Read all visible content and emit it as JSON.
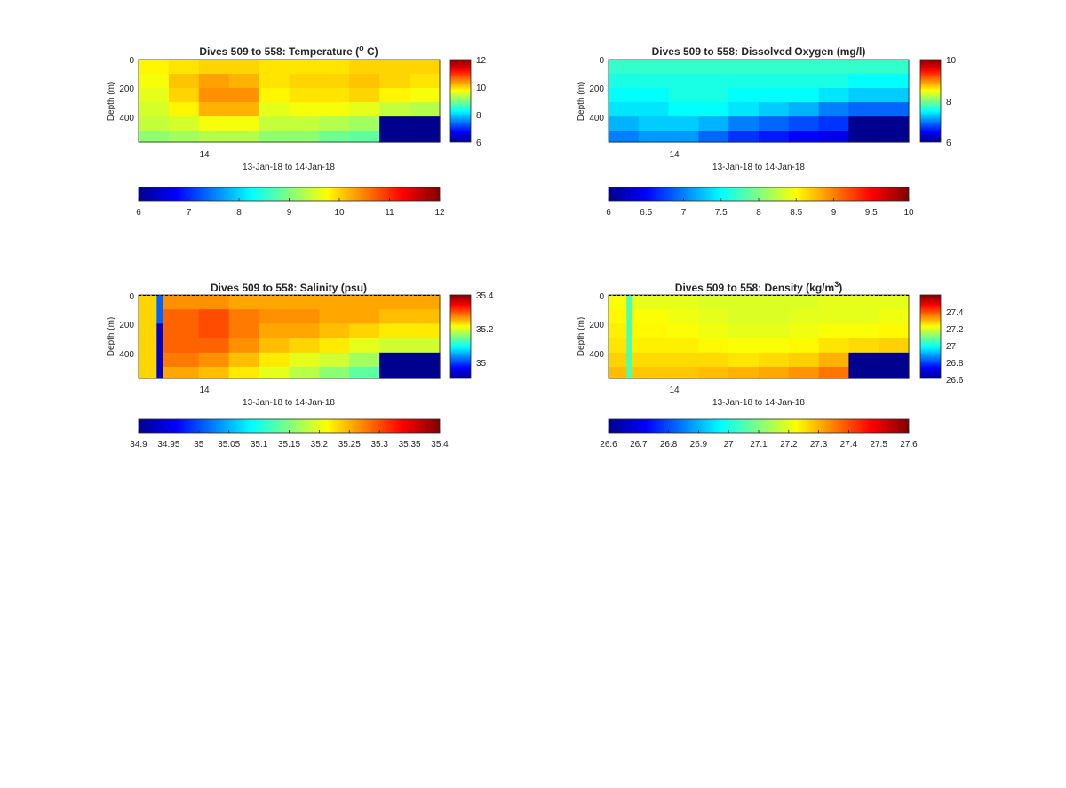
{
  "figure": {
    "colormap": "jet",
    "mask_color": "#00008f",
    "panels": [
      {
        "key": "temperature",
        "title_prefix": "Dives 509 to 558: Temperature (",
        "title_sup": "o",
        "title_suffix": " C)",
        "ylabel": "Depth (m)",
        "xlabel": "13-Jan-18 to 14-Jan-18",
        "xtick": "14",
        "ytick_labels": [
          "0",
          "200",
          "400"
        ],
        "side_cbar_ticks": [
          "6",
          "8",
          "10",
          "12"
        ],
        "bottom_cbar_ticks": [
          "6",
          "7",
          "8",
          "9",
          "10",
          "11",
          "12"
        ]
      },
      {
        "key": "oxygen",
        "title_prefix": "Dives 509 to 558: Dissolved Oxygen (mg/l)",
        "title_sup": "",
        "title_suffix": "",
        "ylabel": "Depth (m)",
        "xlabel": "13-Jan-18 to 14-Jan-18",
        "xtick": "14",
        "ytick_labels": [
          "0",
          "200",
          "400"
        ],
        "side_cbar_ticks": [
          "6",
          "8",
          "10"
        ],
        "bottom_cbar_ticks": [
          "6",
          "6.5",
          "7",
          "7.5",
          "8",
          "8.5",
          "9",
          "9.5",
          "10"
        ]
      },
      {
        "key": "salinity",
        "title_prefix": "Dives 509 to 558: Salinity (psu)",
        "title_sup": "",
        "title_suffix": "",
        "ylabel": "Depth (m)",
        "xlabel": "13-Jan-18 to 14-Jan-18",
        "xtick": "14",
        "ytick_labels": [
          "0",
          "200",
          "400"
        ],
        "side_cbar_ticks": [
          "35",
          "35.2",
          "35.4"
        ],
        "bottom_cbar_ticks": [
          "34.9",
          "34.95",
          "35",
          "35.05",
          "35.1",
          "35.15",
          "35.2",
          "35.25",
          "35.3",
          "35.35",
          "35.4"
        ]
      },
      {
        "key": "density",
        "title_prefix": "Dives 509 to 558: Density (kg/m",
        "title_sup": "3",
        "title_suffix": ")",
        "ylabel": "Depth (m)",
        "xlabel": "13-Jan-18 to 14-Jan-18",
        "xtick": "14",
        "ytick_labels": [
          "0",
          "200",
          "400"
        ],
        "side_cbar_ticks": [
          "26.6",
          "26.8",
          "27",
          "27.2",
          "27.4"
        ],
        "bottom_cbar_ticks": [
          "26.6",
          "26.7",
          "26.8",
          "26.9",
          "27",
          "27.1",
          "27.2",
          "27.3",
          "27.4",
          "27.5",
          "27.6"
        ]
      }
    ]
  },
  "chart_data": [
    {
      "type": "heatmap",
      "variable": "Temperature",
      "unit": "°C",
      "x": "dive",
      "x_range": [
        509,
        558
      ],
      "xlabel": "13-Jan-18 to 14-Jan-18",
      "xtick_labels": [
        "14"
      ],
      "ylabel": "Depth (m)",
      "ylim": [
        0,
        580
      ],
      "y_reversed": true,
      "yticks": [
        0,
        200,
        400
      ],
      "clim": [
        6,
        12
      ],
      "side_colorbar_ticks": [
        6,
        8,
        10,
        12
      ],
      "bottom_colorbar_clim": [
        6,
        12
      ],
      "bottom_colorbar_ticks": [
        6,
        7,
        8,
        9,
        10,
        11,
        12
      ],
      "depth_levels": [
        0,
        100,
        200,
        300,
        400,
        500,
        580
      ],
      "columns": [
        {
          "dive_start": 509,
          "dive_end": 513,
          "values": [
            9.8,
            9.7,
            9.6,
            9.5,
            9.4,
            9.1,
            9.0
          ]
        },
        {
          "dive_start": 514,
          "dive_end": 518,
          "values": [
            9.9,
            10.1,
            10.0,
            9.8,
            9.5,
            9.2,
            9.0
          ]
        },
        {
          "dive_start": 519,
          "dive_end": 523,
          "values": [
            10.0,
            10.3,
            10.4,
            10.2,
            9.7,
            9.3,
            9.1
          ]
        },
        {
          "dive_start": 524,
          "dive_end": 528,
          "values": [
            10.0,
            10.2,
            10.4,
            10.2,
            9.7,
            9.3,
            9.0
          ]
        },
        {
          "dive_start": 529,
          "dive_end": 533,
          "values": [
            9.9,
            9.9,
            9.8,
            9.6,
            9.4,
            9.1,
            8.9
          ]
        },
        {
          "dive_start": 534,
          "dive_end": 538,
          "values": [
            9.9,
            10.0,
            9.9,
            9.7,
            9.4,
            9.1,
            8.8
          ]
        },
        {
          "dive_start": 539,
          "dive_end": 543,
          "values": [
            9.9,
            10.0,
            9.9,
            9.7,
            9.3,
            8.9,
            8.7
          ]
        },
        {
          "dive_start": 544,
          "dive_end": 548,
          "values": [
            10.0,
            10.1,
            10.0,
            9.6,
            9.2,
            8.8,
            8.6
          ]
        },
        {
          "dive_start": 549,
          "dive_end": 553,
          "values": [
            10.0,
            10.0,
            9.8,
            9.4,
            null,
            null,
            null
          ]
        },
        {
          "dive_start": 554,
          "dive_end": 558,
          "values": [
            10.0,
            9.9,
            9.7,
            9.3,
            null,
            null,
            null
          ]
        }
      ]
    },
    {
      "type": "heatmap",
      "variable": "Dissolved Oxygen",
      "unit": "mg/l",
      "x": "dive",
      "x_range": [
        509,
        558
      ],
      "xlabel": "13-Jan-18 to 14-Jan-18",
      "xtick_labels": [
        "14"
      ],
      "ylabel": "Depth (m)",
      "ylim": [
        0,
        580
      ],
      "y_reversed": true,
      "yticks": [
        0,
        200,
        400
      ],
      "clim": [
        6,
        10
      ],
      "side_colorbar_ticks": [
        6,
        8,
        10
      ],
      "bottom_colorbar_clim": [
        6,
        10
      ],
      "bottom_colorbar_ticks": [
        6,
        6.5,
        7,
        7.5,
        8,
        8.5,
        9,
        9.5,
        10
      ],
      "depth_levels": [
        0,
        100,
        200,
        300,
        400,
        500,
        580
      ],
      "columns": [
        {
          "dive_start": 509,
          "dive_end": 513,
          "values": [
            7.7,
            7.6,
            7.5,
            7.4,
            7.2,
            7.0,
            6.8
          ]
        },
        {
          "dive_start": 514,
          "dive_end": 518,
          "values": [
            7.7,
            7.6,
            7.5,
            7.4,
            7.3,
            7.1,
            6.9
          ]
        },
        {
          "dive_start": 519,
          "dive_end": 523,
          "values": [
            7.7,
            7.6,
            7.6,
            7.5,
            7.3,
            7.1,
            6.9
          ]
        },
        {
          "dive_start": 524,
          "dive_end": 528,
          "values": [
            7.7,
            7.6,
            7.6,
            7.5,
            7.2,
            6.9,
            6.7
          ]
        },
        {
          "dive_start": 529,
          "dive_end": 533,
          "values": [
            7.7,
            7.6,
            7.5,
            7.4,
            7.0,
            6.7,
            6.5
          ]
        },
        {
          "dive_start": 534,
          "dive_end": 538,
          "values": [
            7.7,
            7.6,
            7.5,
            7.3,
            6.9,
            6.6,
            6.4
          ]
        },
        {
          "dive_start": 539,
          "dive_end": 543,
          "values": [
            7.7,
            7.6,
            7.5,
            7.2,
            6.8,
            6.5,
            6.4
          ]
        },
        {
          "dive_start": 544,
          "dive_end": 548,
          "values": [
            7.7,
            7.6,
            7.4,
            7.0,
            6.7,
            6.4,
            6.3
          ]
        },
        {
          "dive_start": 549,
          "dive_end": 553,
          "values": [
            7.7,
            7.5,
            7.3,
            6.9,
            null,
            null,
            null
          ]
        },
        {
          "dive_start": 554,
          "dive_end": 558,
          "values": [
            7.7,
            7.5,
            7.3,
            6.9,
            null,
            null,
            null
          ]
        }
      ]
    },
    {
      "type": "heatmap",
      "variable": "Salinity",
      "unit": "psu",
      "x": "dive",
      "x_range": [
        509,
        558
      ],
      "xlabel": "13-Jan-18 to 14-Jan-18",
      "xtick_labels": [
        "14"
      ],
      "ylabel": "Depth (m)",
      "ylim": [
        0,
        580
      ],
      "y_reversed": true,
      "yticks": [
        0,
        200,
        400
      ],
      "clim": [
        34.95,
        35.4
      ],
      "side_colorbar_ticks": [
        35,
        35.2,
        35.4
      ],
      "bottom_colorbar_clim": [
        34.9,
        35.4
      ],
      "bottom_colorbar_ticks": [
        34.9,
        34.95,
        35,
        35.05,
        35.1,
        35.15,
        35.2,
        35.25,
        35.3,
        35.35,
        35.4
      ],
      "depth_levels": [
        0,
        100,
        200,
        300,
        400,
        500,
        580
      ],
      "columns": [
        {
          "dive_start": 509,
          "dive_end": 511,
          "values": [
            35.25,
            35.25,
            35.25,
            35.25,
            35.25,
            35.25,
            35.25
          ]
        },
        {
          "dive_start": 512,
          "dive_end": 512,
          "values": [
            35.05,
            35.05,
            34.98,
            34.98,
            34.98,
            34.98,
            34.98
          ]
        },
        {
          "dive_start": 513,
          "dive_end": 518,
          "values": [
            35.28,
            35.3,
            35.3,
            35.3,
            35.29,
            35.27,
            35.26
          ]
        },
        {
          "dive_start": 519,
          "dive_end": 523,
          "values": [
            35.28,
            35.31,
            35.31,
            35.3,
            35.28,
            35.26,
            35.25
          ]
        },
        {
          "dive_start": 524,
          "dive_end": 528,
          "values": [
            35.27,
            35.29,
            35.29,
            35.28,
            35.26,
            35.24,
            35.23
          ]
        },
        {
          "dive_start": 529,
          "dive_end": 533,
          "values": [
            35.27,
            35.28,
            35.27,
            35.26,
            35.24,
            35.22,
            35.21
          ]
        },
        {
          "dive_start": 534,
          "dive_end": 538,
          "values": [
            35.27,
            35.28,
            35.27,
            35.25,
            35.22,
            35.2,
            35.19
          ]
        },
        {
          "dive_start": 539,
          "dive_end": 543,
          "values": [
            35.27,
            35.27,
            35.26,
            35.24,
            35.21,
            35.18,
            35.17
          ]
        },
        {
          "dive_start": 544,
          "dive_end": 548,
          "values": [
            35.27,
            35.27,
            35.25,
            35.22,
            35.19,
            35.16,
            35.15
          ]
        },
        {
          "dive_start": 549,
          "dive_end": 553,
          "values": [
            35.27,
            35.26,
            35.24,
            35.21,
            null,
            null,
            null
          ]
        },
        {
          "dive_start": 554,
          "dive_end": 558,
          "values": [
            35.27,
            35.26,
            35.24,
            35.21,
            null,
            null,
            null
          ]
        }
      ]
    },
    {
      "type": "heatmap",
      "variable": "Density",
      "unit": "kg/m^3",
      "x": "dive",
      "x_range": [
        509,
        558
      ],
      "xlabel": "13-Jan-18 to 14-Jan-18",
      "xtick_labels": [
        "14"
      ],
      "ylabel": "Depth (m)",
      "ylim": [
        0,
        580
      ],
      "y_reversed": true,
      "yticks": [
        0,
        200,
        400
      ],
      "clim": [
        26.6,
        27.6
      ],
      "side_colorbar_ticks": [
        26.6,
        26.8,
        27,
        27.2,
        27.4
      ],
      "bottom_colorbar_clim": [
        26.6,
        27.6
      ],
      "bottom_colorbar_ticks": [
        26.6,
        26.7,
        26.8,
        26.9,
        27,
        27.1,
        27.2,
        27.3,
        27.4,
        27.5,
        27.6
      ],
      "depth_levels": [
        0,
        100,
        200,
        300,
        400,
        500,
        580
      ],
      "columns": [
        {
          "dive_start": 509,
          "dive_end": 511,
          "values": [
            27.22,
            27.23,
            27.24,
            27.25,
            27.27,
            27.29,
            27.3
          ]
        },
        {
          "dive_start": 512,
          "dive_end": 512,
          "values": [
            27.05,
            27.05,
            27.05,
            27.05,
            27.05,
            27.05,
            27.05
          ]
        },
        {
          "dive_start": 513,
          "dive_end": 518,
          "values": [
            27.2,
            27.22,
            27.23,
            27.24,
            27.26,
            27.28,
            27.3
          ]
        },
        {
          "dive_start": 519,
          "dive_end": 523,
          "values": [
            27.2,
            27.21,
            27.22,
            27.24,
            27.26,
            27.28,
            27.31
          ]
        },
        {
          "dive_start": 524,
          "dive_end": 528,
          "values": [
            27.19,
            27.2,
            27.21,
            27.23,
            27.26,
            27.29,
            27.33
          ]
        },
        {
          "dive_start": 529,
          "dive_end": 533,
          "values": [
            27.19,
            27.19,
            27.2,
            27.22,
            27.25,
            27.3,
            27.35
          ]
        },
        {
          "dive_start": 534,
          "dive_end": 538,
          "values": [
            27.19,
            27.19,
            27.2,
            27.22,
            27.26,
            27.31,
            27.36
          ]
        },
        {
          "dive_start": 539,
          "dive_end": 543,
          "values": [
            27.19,
            27.2,
            27.21,
            27.23,
            27.27,
            27.33,
            27.38
          ]
        },
        {
          "dive_start": 544,
          "dive_end": 548,
          "values": [
            27.2,
            27.2,
            27.22,
            27.25,
            27.3,
            27.36,
            27.4
          ]
        },
        {
          "dive_start": 549,
          "dive_end": 553,
          "values": [
            27.2,
            27.2,
            27.22,
            27.26,
            null,
            null,
            null
          ]
        },
        {
          "dive_start": 554,
          "dive_end": 558,
          "values": [
            27.2,
            27.21,
            27.23,
            27.27,
            null,
            null,
            null
          ]
        }
      ]
    }
  ]
}
